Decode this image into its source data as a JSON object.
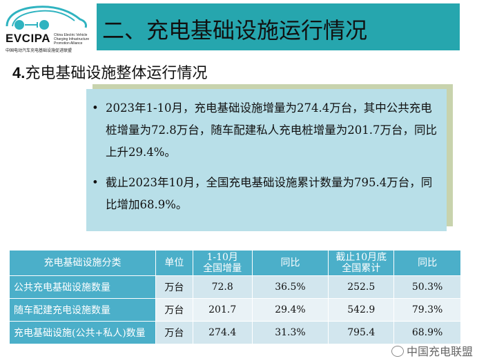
{
  "logo": {
    "word": "EVCIPA",
    "en": "China Electric Vehicle Charging Infrastructure Promotion Alliance",
    "cn": "中国电动汽车充电基础设施促进联盟"
  },
  "title": "二、充电基础设施运行情况",
  "subtitle": {
    "num": "4.",
    "text": "充电基础设施整体运行情况"
  },
  "bullets": [
    "2023年1-10月，充电基础设施增量为274.4万台，其中公共充电桩增量为72.8万台，随车配建私人充电桩增量为201.7万台，同比上升29.4%。",
    "截止2023年10月，全国充电基础设施累计数量为795.4万台，同比增加68.9%。"
  ],
  "table": {
    "headers": [
      "充电基础设施分类",
      "单位",
      "1-10月\n全国增量",
      "同比",
      "截止10月底\n全国累计",
      "同比"
    ],
    "rows": [
      [
        "公共充电基础设施数量",
        "万台",
        "72.8",
        "36.5%",
        "252.5",
        "50.3%"
      ],
      [
        "随车配建充电设施数量",
        "万台",
        "201.7",
        "29.4%",
        "542.9",
        "79.3%"
      ],
      [
        "充电基础设施(公共+私人)数量",
        "万台",
        "274.4",
        "31.3%",
        "795.4",
        "68.9%"
      ]
    ]
  },
  "watermark": "中国充电联盟",
  "colors": {
    "title_bar": "#26a6ae",
    "table_header": "#4bafc9",
    "text_box": "#b8dfe8"
  }
}
